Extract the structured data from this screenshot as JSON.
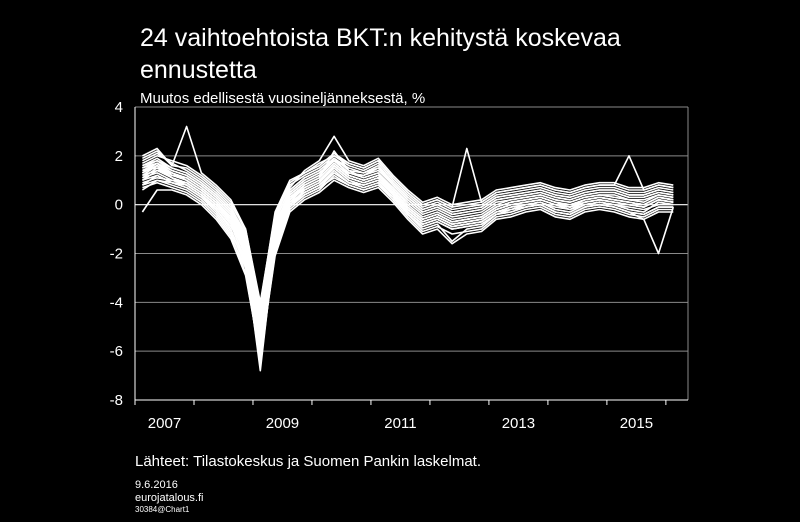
{
  "chart_data": {
    "type": "line",
    "title": "24 vaihtoehtoista BKT:n kehitystä koskevaa ennustetta",
    "ylabel": "Muutos edellisestä vuosineljänneksestä, %",
    "xlabel": "",
    "ylim": [
      -8,
      4
    ],
    "yticks": [
      "4",
      "2",
      "0",
      "-2",
      "-4",
      "-6",
      "-8"
    ],
    "xtick_labels": [
      "2007",
      "2009",
      "2011",
      "2013",
      "2015"
    ],
    "x_quarters": [
      "2007Q1",
      "2007Q2",
      "2007Q3",
      "2007Q4",
      "2008Q1",
      "2008Q2",
      "2008Q3",
      "2008Q4",
      "2009Q1",
      "2009Q2",
      "2009Q3",
      "2009Q4",
      "2010Q1",
      "2010Q2",
      "2010Q3",
      "2010Q4",
      "2011Q1",
      "2011Q2",
      "2011Q3",
      "2011Q4",
      "2012Q1",
      "2012Q2",
      "2012Q3",
      "2012Q4",
      "2013Q1",
      "2013Q2",
      "2013Q3",
      "2013Q4",
      "2014Q1",
      "2014Q2",
      "2014Q3",
      "2014Q4",
      "2015Q1",
      "2015Q2",
      "2015Q3",
      "2015Q4",
      "2016Q1"
    ],
    "grid": true,
    "line_color": "#ffffff",
    "series": [
      {
        "values": [
          1.2,
          1.6,
          1.1,
          0.8,
          0.4,
          -0.2,
          -0.9,
          -1.8,
          -5.5,
          -1.2,
          0.3,
          0.6,
          0.9,
          1.6,
          1.1,
          0.9,
          1.1,
          0.6,
          -0.1,
          -0.6,
          -0.4,
          -0.7,
          -0.6,
          -0.5,
          -0.1,
          0.1,
          0.2,
          0.3,
          0.1,
          -0.1,
          0.2,
          0.3,
          0.2,
          0.1,
          0.0,
          0.3,
          0.2
        ]
      },
      {
        "values": [
          1.0,
          1.4,
          1.3,
          1.0,
          0.6,
          0.1,
          -0.5,
          -2.2,
          -6.8,
          -1.5,
          0.2,
          0.8,
          1.1,
          2.2,
          1.4,
          1.1,
          1.3,
          0.4,
          -0.3,
          -0.8,
          -0.6,
          -0.9,
          -0.8,
          -0.7,
          -0.3,
          -0.2,
          0.0,
          0.1,
          -0.2,
          -0.3,
          0.0,
          0.1,
          0.0,
          -0.2,
          -0.3,
          0.1,
          0.0
        ]
      },
      {
        "values": [
          1.5,
          1.8,
          1.4,
          1.2,
          0.8,
          0.3,
          -0.3,
          -1.5,
          -4.8,
          -0.8,
          0.5,
          1.0,
          1.3,
          1.8,
          1.3,
          1.2,
          1.5,
          0.8,
          0.2,
          -0.3,
          -0.1,
          -0.4,
          -0.3,
          -0.2,
          0.2,
          0.3,
          0.4,
          0.5,
          0.3,
          0.2,
          0.4,
          0.5,
          0.5,
          0.3,
          0.3,
          0.5,
          0.4
        ]
      },
      {
        "values": [
          0.8,
          1.2,
          0.9,
          0.7,
          0.3,
          -0.3,
          -1.1,
          -2.5,
          -6.0,
          -1.8,
          0.0,
          0.4,
          0.7,
          1.3,
          0.9,
          0.7,
          0.9,
          0.3,
          -0.4,
          -0.9,
          -0.7,
          -1.0,
          -0.9,
          -0.8,
          -0.4,
          -0.3,
          -0.1,
          0.0,
          -0.3,
          -0.4,
          -0.1,
          0.0,
          -0.1,
          -0.3,
          -0.4,
          -0.1,
          -0.1
        ]
      },
      {
        "values": [
          1.8,
          2.1,
          1.7,
          1.4,
          1.0,
          0.5,
          -0.1,
          -1.2,
          -4.2,
          -0.5,
          0.8,
          1.2,
          1.5,
          2.0,
          1.6,
          1.4,
          1.7,
          1.0,
          0.4,
          -0.1,
          0.1,
          -0.2,
          -0.1,
          0.0,
          0.4,
          0.5,
          0.6,
          0.7,
          0.5,
          0.4,
          0.6,
          0.7,
          0.7,
          0.5,
          0.5,
          0.7,
          0.6
        ]
      },
      {
        "values": [
          1.1,
          1.3,
          1.0,
          0.9,
          0.5,
          0.0,
          -0.7,
          -2.0,
          -5.8,
          -1.3,
          0.1,
          0.7,
          1.0,
          1.5,
          1.0,
          0.8,
          1.0,
          0.5,
          -0.2,
          -0.7,
          -0.5,
          -0.8,
          -0.7,
          -0.6,
          -0.2,
          0.0,
          0.1,
          0.2,
          0.0,
          -0.2,
          0.1,
          0.2,
          0.1,
          0.0,
          -0.1,
          0.2,
          0.1
        ]
      },
      {
        "values": [
          1.3,
          1.7,
          1.2,
          1.1,
          0.7,
          0.2,
          -0.4,
          -1.7,
          -5.0,
          -1.0,
          0.4,
          0.9,
          1.2,
          1.9,
          1.2,
          1.0,
          1.2,
          0.7,
          0.0,
          -0.5,
          -0.3,
          -0.6,
          -0.5,
          -0.4,
          0.0,
          0.2,
          0.3,
          0.4,
          0.2,
          0.1,
          0.3,
          0.4,
          0.3,
          0.2,
          0.1,
          0.4,
          0.3
        ]
      },
      {
        "values": [
          0.6,
          1.0,
          0.8,
          0.6,
          0.2,
          -0.4,
          -1.2,
          -2.8,
          -6.3,
          -2.0,
          -0.2,
          0.3,
          0.6,
          1.2,
          0.8,
          0.6,
          0.8,
          0.2,
          -0.5,
          -1.1,
          -0.9,
          -1.2,
          -1.1,
          -1.0,
          -0.5,
          -0.4,
          -0.2,
          -0.1,
          -0.4,
          -0.5,
          -0.2,
          -0.1,
          -0.2,
          -0.4,
          -0.5,
          -0.2,
          -0.2
        ]
      },
      {
        "values": [
          1.6,
          1.9,
          1.5,
          1.3,
          0.9,
          0.4,
          -0.2,
          -1.3,
          -4.5,
          -0.6,
          0.6,
          1.1,
          1.4,
          1.9,
          1.5,
          1.3,
          1.6,
          0.9,
          0.3,
          -0.2,
          0.0,
          -0.3,
          -0.2,
          -0.1,
          0.3,
          0.4,
          0.5,
          0.6,
          0.4,
          0.3,
          0.5,
          0.6,
          0.6,
          0.4,
          0.4,
          0.6,
          0.5
        ]
      },
      {
        "values": [
          0.9,
          1.1,
          1.0,
          0.8,
          0.4,
          -0.1,
          -0.8,
          -2.3,
          -6.5,
          -1.6,
          0.1,
          0.5,
          0.8,
          1.4,
          0.9,
          0.8,
          1.0,
          0.4,
          -0.3,
          -0.8,
          -0.6,
          -0.9,
          -0.8,
          -0.7,
          -0.3,
          -0.1,
          0.0,
          0.1,
          -0.1,
          -0.2,
          0.0,
          0.1,
          0.0,
          -0.1,
          -0.2,
          0.0,
          0.0
        ]
      },
      {
        "values": [
          2.0,
          2.3,
          1.6,
          1.5,
          1.1,
          0.6,
          0.0,
          -1.0,
          -4.0,
          -0.4,
          0.9,
          1.3,
          1.6,
          2.1,
          1.7,
          1.5,
          1.8,
          1.1,
          0.5,
          0.0,
          0.2,
          -0.1,
          0.0,
          0.1,
          0.5,
          0.6,
          0.7,
          0.8,
          0.6,
          0.5,
          0.7,
          0.8,
          0.8,
          0.6,
          0.6,
          0.8,
          0.7
        ]
      },
      {
        "values": [
          1.4,
          1.5,
          1.3,
          1.0,
          0.6,
          0.1,
          -0.6,
          -1.9,
          -5.3,
          -1.1,
          0.3,
          0.8,
          1.1,
          1.7,
          1.2,
          1.0,
          1.2,
          0.6,
          -0.1,
          -0.6,
          -0.4,
          -0.7,
          -0.6,
          -0.5,
          -0.1,
          0.1,
          0.2,
          0.3,
          0.1,
          0.0,
          0.2,
          0.3,
          0.2,
          0.1,
          0.0,
          0.3,
          0.2
        ]
      },
      {
        "values": [
          1.7,
          2.0,
          1.8,
          1.6,
          1.2,
          0.7,
          0.1,
          -1.1,
          -4.3,
          -0.7,
          0.7,
          1.4,
          1.8,
          2.8,
          1.8,
          1.6,
          1.9,
          1.2,
          0.6,
          0.1,
          0.3,
          0.0,
          0.1,
          0.2,
          0.6,
          0.7,
          0.8,
          0.9,
          0.7,
          0.6,
          0.8,
          0.9,
          0.9,
          0.7,
          0.7,
          0.9,
          0.8
        ]
      },
      {
        "values": [
          0.7,
          0.9,
          0.7,
          0.5,
          0.1,
          -0.5,
          -1.3,
          -2.6,
          -6.1,
          -1.9,
          -0.1,
          0.4,
          0.7,
          1.1,
          0.8,
          0.6,
          0.8,
          0.3,
          -0.4,
          -1.0,
          -0.8,
          -1.5,
          -1.0,
          -0.9,
          -0.4,
          -0.3,
          -0.1,
          0.0,
          -0.3,
          -0.4,
          -0.1,
          0.0,
          -0.1,
          -0.3,
          -0.6,
          -2.0,
          -0.1
        ]
      },
      {
        "values": [
          1.2,
          1.4,
          1.1,
          0.9,
          0.5,
          0.0,
          -0.7,
          -2.1,
          -5.6,
          -1.4,
          0.2,
          0.7,
          1.0,
          1.6,
          1.1,
          0.9,
          1.1,
          0.5,
          -0.2,
          -0.7,
          -0.5,
          -0.8,
          -0.7,
          -0.6,
          -0.2,
          0.0,
          0.1,
          0.2,
          0.0,
          -0.1,
          0.1,
          0.2,
          0.1,
          0.0,
          -0.1,
          0.2,
          0.1
        ]
      },
      {
        "values": [
          1.9,
          2.2,
          1.6,
          3.2,
          1.3,
          0.8,
          0.2,
          -1.0,
          -4.1,
          -0.3,
          1.0,
          1.3,
          1.7,
          2.0,
          1.7,
          1.5,
          1.8,
          1.1,
          0.5,
          0.0,
          0.2,
          -0.1,
          2.3,
          0.1,
          0.5,
          0.6,
          0.7,
          0.8,
          0.6,
          0.5,
          0.7,
          0.8,
          0.8,
          2.0,
          0.6,
          0.8,
          0.7
        ]
      },
      {
        "values": [
          1.0,
          1.2,
          0.9,
          0.8,
          0.4,
          -0.1,
          -0.8,
          -2.4,
          -6.6,
          -1.7,
          0.0,
          0.6,
          0.9,
          1.5,
          1.0,
          0.8,
          1.0,
          0.4,
          -0.3,
          -0.8,
          -0.6,
          -0.9,
          -0.8,
          -0.7,
          -0.3,
          -0.1,
          0.0,
          0.1,
          -0.2,
          -0.3,
          0.0,
          0.1,
          0.0,
          -0.2,
          -0.3,
          0.1,
          0.0
        ]
      },
      {
        "values": [
          1.5,
          1.7,
          1.4,
          1.2,
          0.8,
          0.3,
          -0.3,
          -1.6,
          -4.9,
          -0.9,
          0.5,
          1.0,
          1.3,
          1.8,
          1.3,
          1.2,
          1.4,
          0.8,
          0.2,
          -0.3,
          -0.1,
          -0.4,
          -0.3,
          -0.2,
          0.2,
          0.3,
          0.4,
          0.5,
          0.3,
          0.2,
          0.4,
          0.5,
          0.5,
          0.3,
          0.3,
          0.5,
          0.4
        ]
      },
      {
        "values": [
          -0.3,
          0.6,
          0.6,
          0.4,
          0.0,
          -0.6,
          -1.4,
          -2.9,
          -6.2,
          -2.1,
          -0.3,
          0.2,
          0.5,
          1.0,
          0.7,
          0.5,
          0.7,
          0.1,
          -0.6,
          -1.2,
          -1.0,
          -1.6,
          -1.2,
          -1.1,
          -0.6,
          -0.5,
          -0.3,
          -0.2,
          -0.5,
          -0.6,
          -0.3,
          -0.2,
          -0.3,
          -0.5,
          -0.6,
          -0.3,
          -0.3
        ]
      },
      {
        "values": [
          1.3,
          1.6,
          1.2,
          1.0,
          0.6,
          0.1,
          -0.5,
          -1.8,
          -5.2,
          -1.2,
          0.3,
          0.8,
          1.1,
          1.7,
          1.2,
          1.0,
          1.2,
          0.6,
          -0.1,
          -0.6,
          -0.4,
          -0.7,
          -0.6,
          -0.5,
          -0.1,
          0.1,
          0.2,
          0.3,
          0.1,
          0.0,
          0.2,
          0.3,
          0.2,
          0.1,
          0.0,
          0.3,
          0.2
        ]
      },
      {
        "values": [
          0.8,
          1.0,
          0.9,
          0.7,
          0.3,
          -0.2,
          -1.0,
          -2.5,
          -5.9,
          -1.8,
          0.0,
          0.5,
          0.8,
          1.3,
          0.9,
          0.7,
          0.9,
          0.3,
          -0.4,
          -0.9,
          -0.7,
          -1.0,
          -0.9,
          -0.8,
          -0.4,
          -0.2,
          -0.1,
          0.0,
          -0.3,
          -0.4,
          -0.1,
          0.0,
          -0.1,
          -0.3,
          -0.4,
          -0.1,
          -0.1
        ]
      },
      {
        "values": [
          1.6,
          1.8,
          1.5,
          1.3,
          0.9,
          0.4,
          -0.2,
          -1.4,
          -4.6,
          -0.6,
          0.6,
          1.1,
          1.4,
          1.9,
          1.4,
          1.3,
          1.5,
          0.9,
          0.3,
          -0.2,
          0.0,
          -0.3,
          -0.2,
          -0.1,
          0.3,
          0.4,
          0.5,
          0.6,
          0.4,
          0.3,
          0.5,
          0.6,
          0.6,
          0.4,
          0.4,
          0.6,
          0.5
        ]
      },
      {
        "values": [
          1.1,
          1.5,
          1.1,
          0.9,
          0.5,
          0.0,
          -0.6,
          -2.0,
          -5.7,
          -1.3,
          0.2,
          0.7,
          1.0,
          1.6,
          1.1,
          0.9,
          1.1,
          0.5,
          -0.2,
          -0.7,
          -0.5,
          -0.8,
          -0.7,
          -0.6,
          -0.2,
          0.0,
          0.1,
          0.2,
          0.0,
          -0.1,
          0.1,
          0.2,
          0.1,
          0.0,
          -0.1,
          0.2,
          0.1
        ]
      },
      {
        "values": [
          1.4,
          1.7,
          1.3,
          1.1,
          0.7,
          0.2,
          -0.4,
          -1.7,
          -5.1,
          -1.0,
          0.4,
          0.9,
          1.2,
          1.8,
          1.3,
          1.1,
          1.3,
          0.7,
          0.1,
          -0.4,
          -0.2,
          -0.5,
          -0.4,
          -0.3,
          0.1,
          0.2,
          0.3,
          0.4,
          0.2,
          0.1,
          0.3,
          0.4,
          0.4,
          0.2,
          0.2,
          0.4,
          0.3
        ]
      }
    ]
  },
  "source_text": "Lähteet: Tilastokeskus ja Suomen Pankin laskelmat.",
  "footer": {
    "date": "9.6.2016",
    "site": "eurojatalous.fi",
    "code": "30384@Chart1"
  }
}
